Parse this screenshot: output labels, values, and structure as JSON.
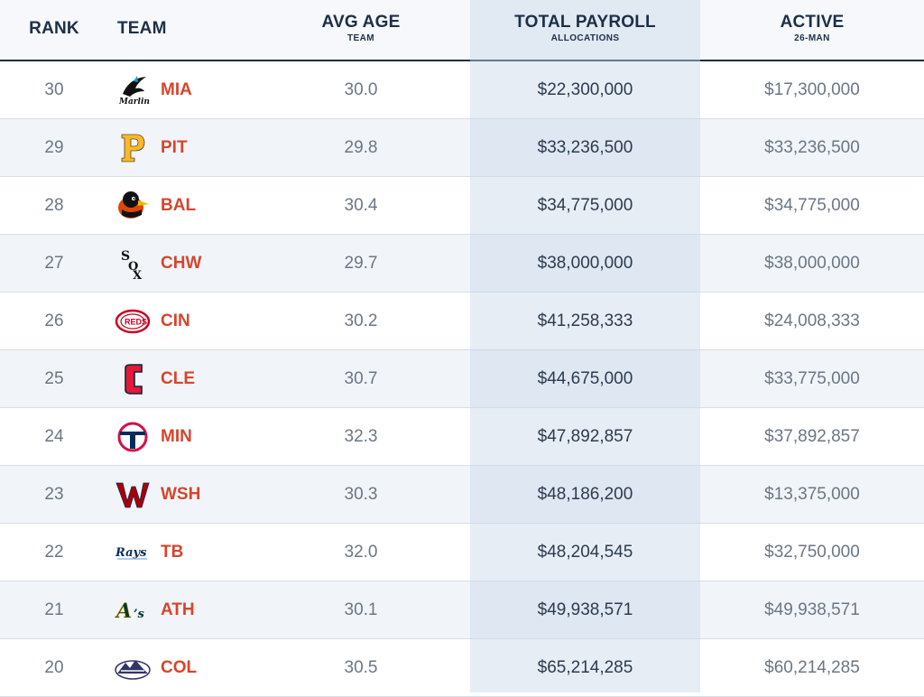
{
  "columns": {
    "rank": {
      "label": "RANK"
    },
    "team": {
      "label": "TEAM"
    },
    "avg_age": {
      "label": "AVG AGE",
      "sublabel": "TEAM"
    },
    "total_payroll": {
      "label": "TOTAL PAYROLL",
      "sublabel": "ALLOCATIONS"
    },
    "active": {
      "label": "ACTIVE",
      "sublabel": "26-MAN"
    }
  },
  "colors": {
    "header_text": "#1c2f48",
    "team_abbr": "#d6452d",
    "highlight_column": "#dbe4ef"
  },
  "rows": [
    {
      "rank": "30",
      "team": "MIA",
      "logo": "marlins-logo-icon",
      "avg_age": "30.0",
      "total_payroll": "$22,300,000",
      "active": "$17,300,000"
    },
    {
      "rank": "29",
      "team": "PIT",
      "logo": "pirates-logo-icon",
      "avg_age": "29.8",
      "total_payroll": "$33,236,500",
      "active": "$33,236,500"
    },
    {
      "rank": "28",
      "team": "BAL",
      "logo": "orioles-logo-icon",
      "avg_age": "30.4",
      "total_payroll": "$34,775,000",
      "active": "$34,775,000"
    },
    {
      "rank": "27",
      "team": "CHW",
      "logo": "white-sox-logo-icon",
      "avg_age": "29.7",
      "total_payroll": "$38,000,000",
      "active": "$38,000,000"
    },
    {
      "rank": "26",
      "team": "CIN",
      "logo": "reds-logo-icon",
      "avg_age": "30.2",
      "total_payroll": "$41,258,333",
      "active": "$24,008,333"
    },
    {
      "rank": "25",
      "team": "CLE",
      "logo": "guardians-logo-icon",
      "avg_age": "30.7",
      "total_payroll": "$44,675,000",
      "active": "$33,775,000"
    },
    {
      "rank": "24",
      "team": "MIN",
      "logo": "twins-logo-icon",
      "avg_age": "32.3",
      "total_payroll": "$47,892,857",
      "active": "$37,892,857"
    },
    {
      "rank": "23",
      "team": "WSH",
      "logo": "nationals-logo-icon",
      "avg_age": "30.3",
      "total_payroll": "$48,186,200",
      "active": "$13,375,000"
    },
    {
      "rank": "22",
      "team": "TB",
      "logo": "rays-logo-icon",
      "avg_age": "32.0",
      "total_payroll": "$48,204,545",
      "active": "$32,750,000"
    },
    {
      "rank": "21",
      "team": "ATH",
      "logo": "athletics-logo-icon",
      "avg_age": "30.1",
      "total_payroll": "$49,938,571",
      "active": "$49,938,571"
    },
    {
      "rank": "20",
      "team": "COL",
      "logo": "rockies-logo-icon",
      "avg_age": "30.5",
      "total_payroll": "$65,214,285",
      "active": "$60,214,285"
    }
  ]
}
